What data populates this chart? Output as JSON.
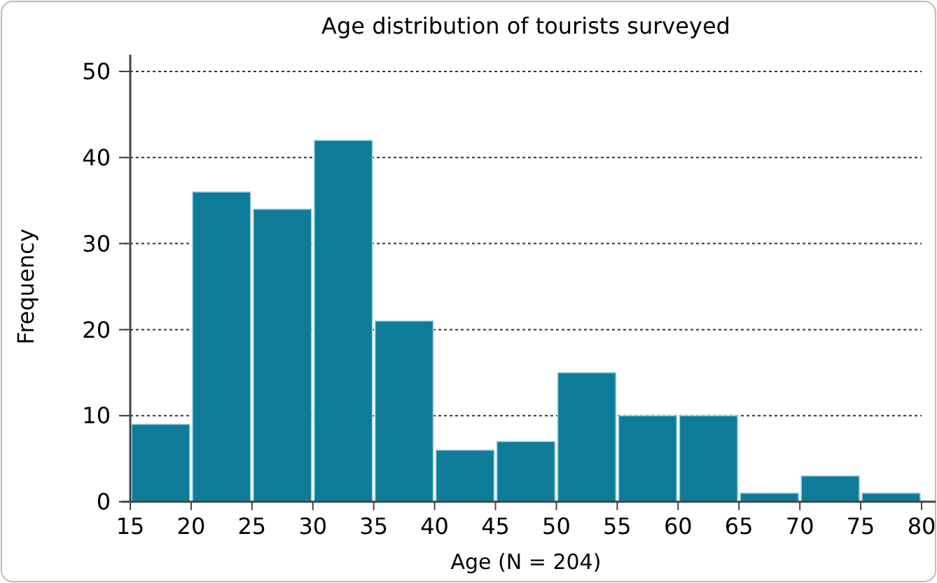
{
  "chart_data": {
    "type": "histogram",
    "title": "Age distribution of tourists surveyed",
    "xlabel": "Age (N = 204)",
    "ylabel": "Frequency",
    "bins": [
      15,
      20,
      25,
      30,
      35,
      40,
      45,
      50,
      55,
      60,
      65,
      70,
      75,
      80
    ],
    "values": [
      9,
      36,
      34,
      42,
      21,
      6,
      7,
      15,
      10,
      10,
      1,
      3,
      1
    ],
    "color": "#0e7c99",
    "xlim": [
      15,
      80
    ],
    "xticks": [
      15,
      20,
      25,
      30,
      35,
      40,
      45,
      50,
      55,
      60,
      65,
      70,
      75,
      80
    ],
    "ylim": [
      0,
      50
    ],
    "yticks": [
      0,
      10,
      20,
      30,
      40,
      50
    ],
    "grid": "y"
  }
}
